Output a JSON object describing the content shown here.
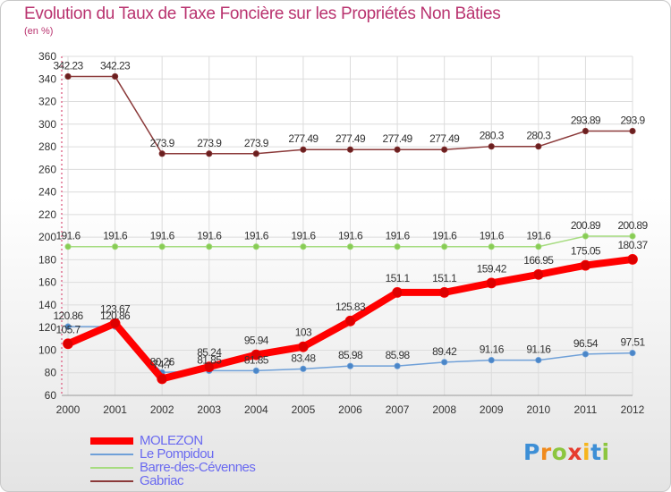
{
  "header": {
    "title": "Evolution du Taux de Taxe Foncière sur les Propriétés Non Bâties",
    "unit": "(en %)"
  },
  "colors": {
    "title": "#b9336f",
    "legend_text": "#6a6af0",
    "grid": "#dcdcdc",
    "axis_text": "#333333",
    "label_text": "#333333"
  },
  "logo": {
    "text": "Proxiti",
    "letters": [
      "P",
      "r",
      "o",
      "x",
      "i",
      "t",
      "i"
    ]
  },
  "chart_data": {
    "type": "line",
    "title": "Evolution du Taux de Taxe Foncière sur les Propriétés Non Bâties",
    "ylabel": "(en %)",
    "xlabel": "",
    "ylim": [
      60,
      360
    ],
    "yticks": [
      60,
      80,
      100,
      120,
      140,
      160,
      180,
      200,
      220,
      240,
      260,
      280,
      300,
      320,
      340,
      360
    ],
    "grid": true,
    "legend_position": "bottom-left",
    "x": [
      "2000",
      "2001",
      "2002",
      "2003",
      "2004",
      "2005",
      "2006",
      "2007",
      "2008",
      "2009",
      "2010",
      "2011",
      "2012"
    ],
    "series": [
      {
        "name": "MOLEZON",
        "color": "#ff0000",
        "markerFill": "#dd0000",
        "width": 8,
        "values": [
          105.7,
          123.67,
          74.7,
          85.24,
          95.94,
          103,
          125.83,
          151.1,
          151.1,
          159.42,
          166.95,
          175.05,
          180.37
        ],
        "labels": [
          "105.7",
          "123.67",
          "74.7",
          "85.24",
          "95.94",
          "103",
          "125.83",
          "151.1",
          "151.1",
          "159.42",
          "166.95",
          "175.05",
          "180.37"
        ]
      },
      {
        "name": "Le Pompidou",
        "color": "#6fa0d8",
        "markerFill": "#4a86c8",
        "width": 1.5,
        "values": [
          120.86,
          120.86,
          80.26,
          81.85,
          81.85,
          83.48,
          85.98,
          85.98,
          89.42,
          91.16,
          91.16,
          96.54,
          97.51
        ],
        "labels": [
          "120.86",
          "120.86",
          "80.26",
          "81.85",
          "81.85",
          "83.48",
          "85.98",
          "85.98",
          "89.42",
          "91.16",
          "91.16",
          "96.54",
          "97.51"
        ]
      },
      {
        "name": "Barre-des-Cévennes",
        "color": "#a6dc80",
        "markerFill": "#88cc55",
        "width": 1.5,
        "values": [
          191.6,
          191.6,
          191.6,
          191.6,
          191.6,
          191.6,
          191.6,
          191.6,
          191.6,
          191.6,
          191.6,
          200.89,
          200.89
        ],
        "labels": [
          "191.6",
          "191.6",
          "191.6",
          "191.6",
          "191.6",
          "191.6",
          "191.6",
          "191.6",
          "191.6",
          "191.6",
          "191.6",
          "200.89",
          "200.89"
        ]
      },
      {
        "name": "Gabriac",
        "color": "#8b3a3a",
        "markerFill": "#6a1f1f",
        "width": 1.5,
        "values": [
          342.23,
          342.23,
          273.9,
          273.9,
          273.9,
          277.49,
          277.49,
          277.49,
          277.49,
          280.3,
          280.3,
          293.89,
          293.9
        ],
        "labels": [
          "342.23",
          "342.23",
          "273.9",
          "273.9",
          "273.9",
          "277.49",
          "277.49",
          "277.49",
          "277.49",
          "280.3",
          "280.3",
          "293.89",
          "293.9"
        ]
      }
    ]
  }
}
